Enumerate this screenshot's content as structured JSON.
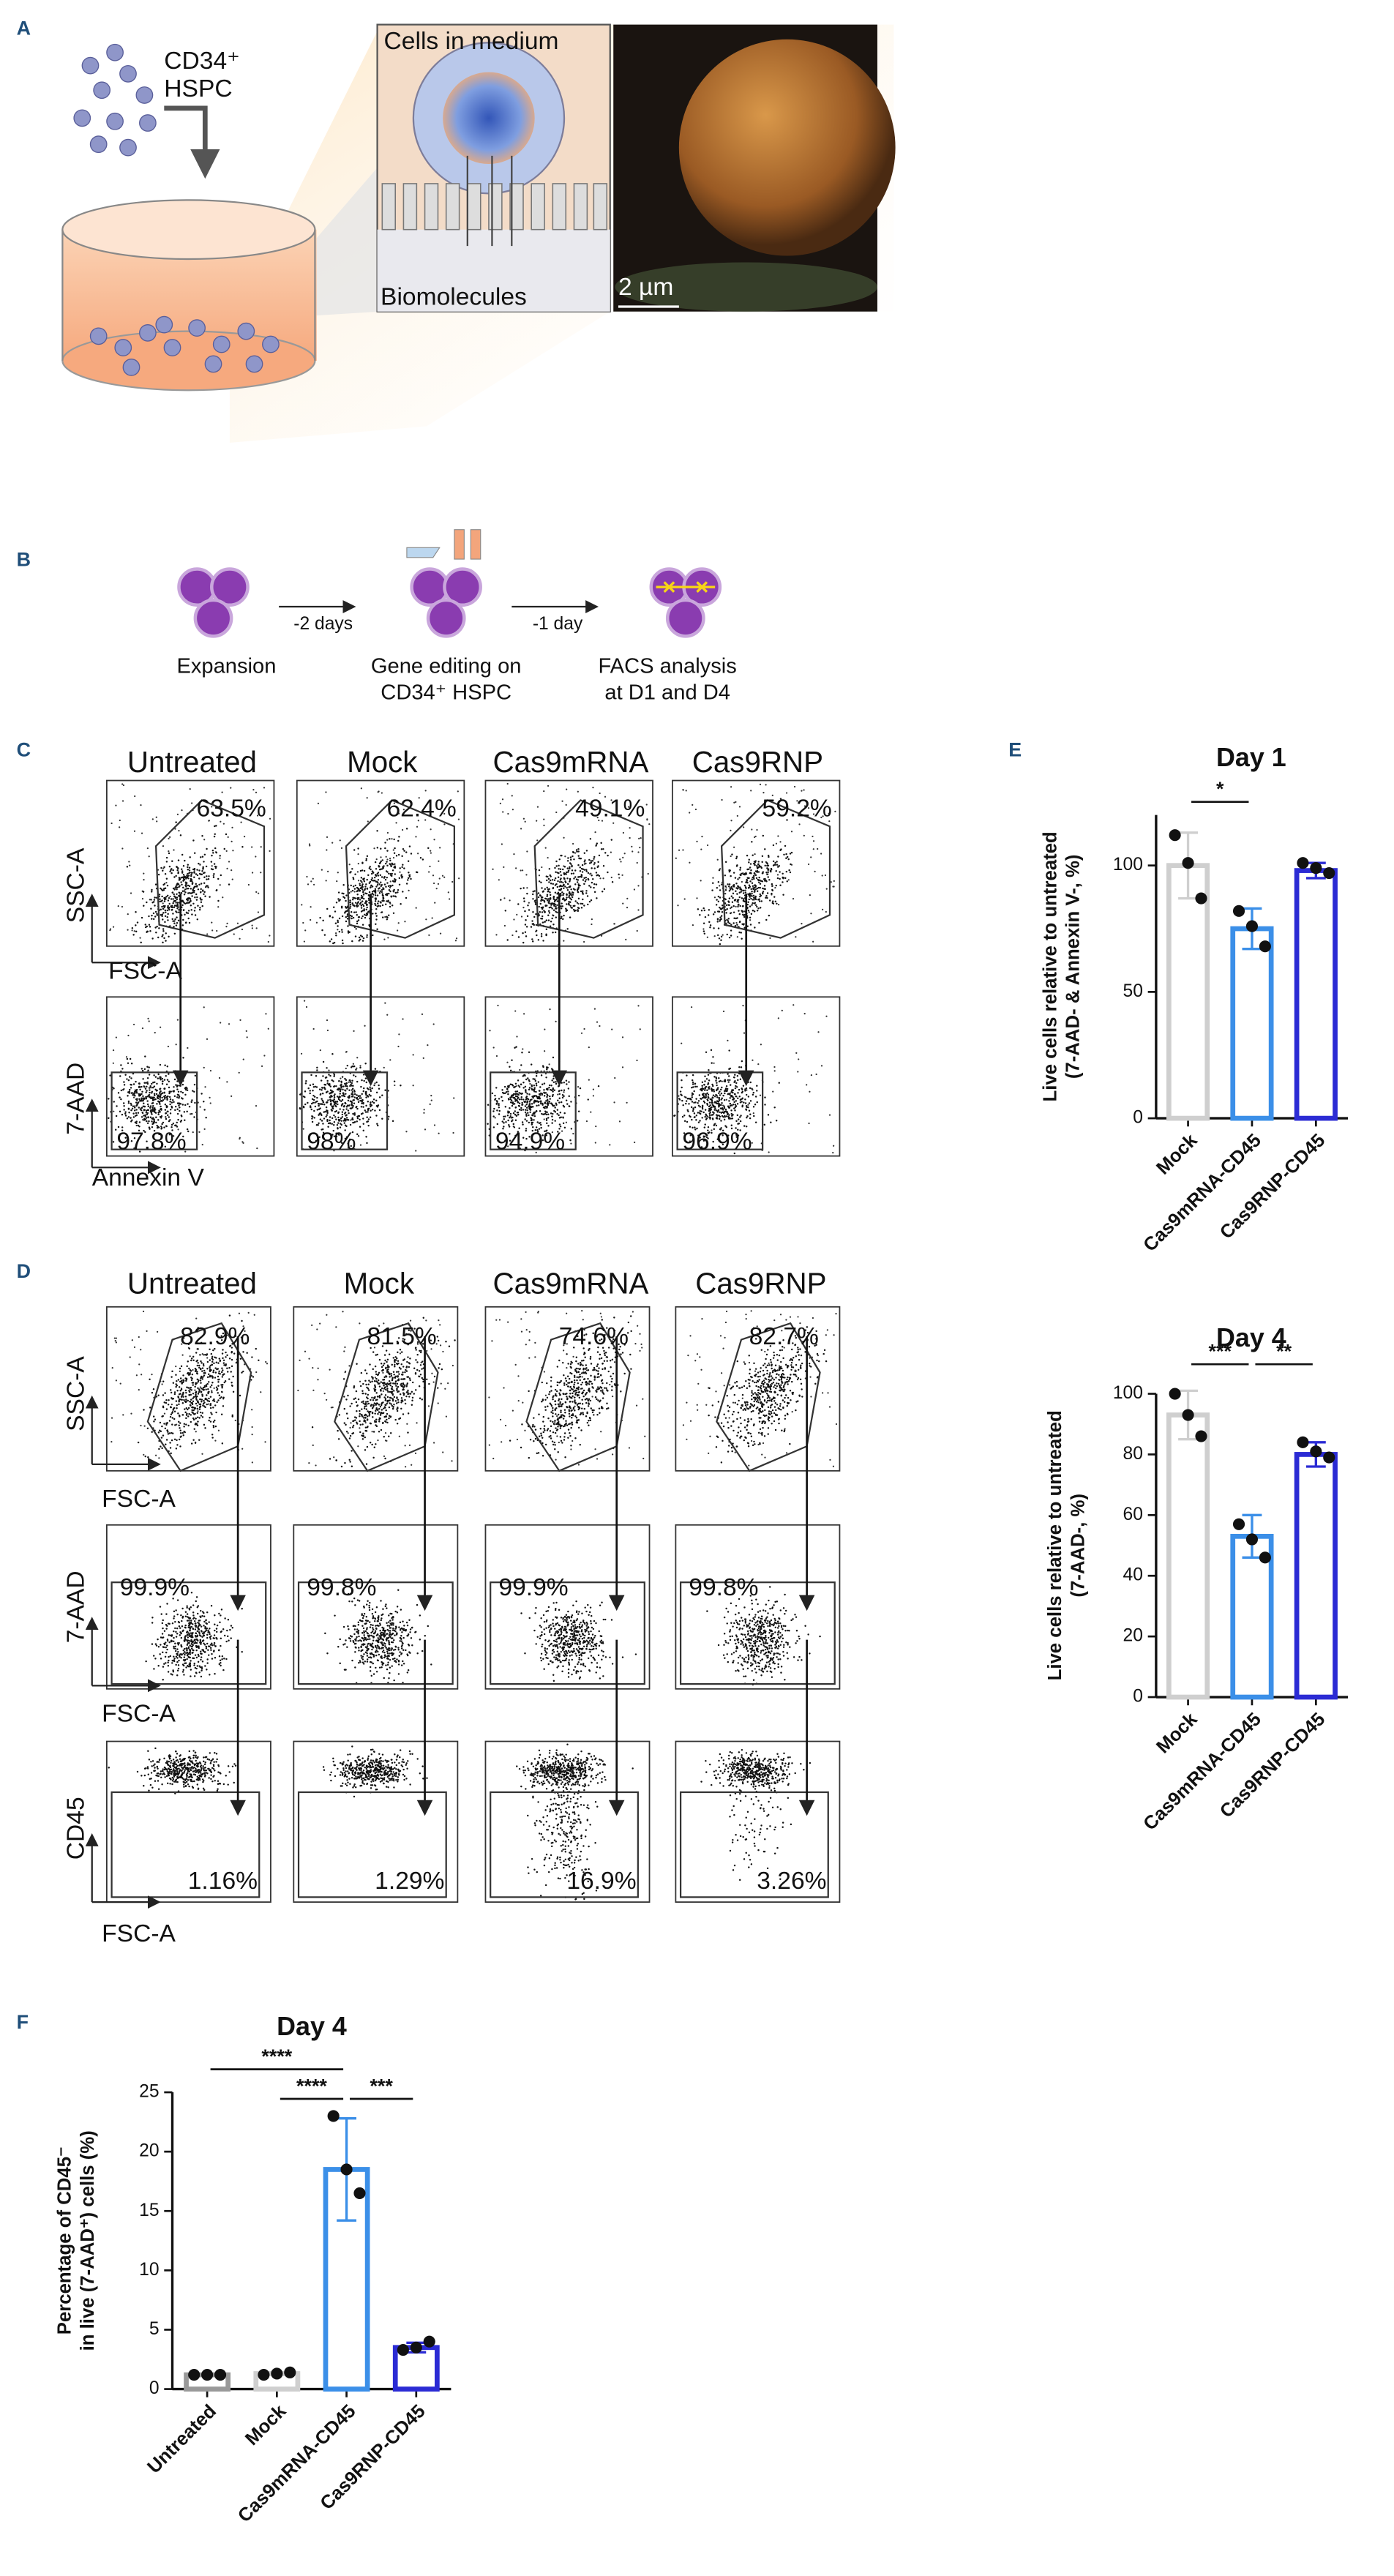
{
  "panel_letters": [
    "A",
    "B",
    "C",
    "D",
    "E",
    "F"
  ],
  "panel_a": {
    "cell_label": "CD34⁺",
    "cell_label_2": "HSPC",
    "inset_title": "Cells in medium",
    "inset_bottom": "Biomolecules",
    "scale_bar": "2 µm"
  },
  "panel_b": {
    "steps": [
      [
        "Expansion"
      ],
      [
        "Gene editing on",
        "CD34⁺ HSPC"
      ],
      [
        "FACS analysis",
        "at D1 and D4"
      ]
    ],
    "intervals": [
      "-2 days",
      "-1 day"
    ]
  },
  "panel_c": {
    "columns": [
      "Untreated",
      "Mock",
      "Cas9mRNA",
      "Cas9RNP"
    ],
    "gate_1": [
      "63.5%",
      "62.4%",
      "49.1%",
      "59.2%"
    ],
    "gate_2": [
      "97.8%",
      "98%",
      "94.9%",
      "96.9%"
    ],
    "axis_labels": [
      "SSC-A",
      "FSC-A",
      "7-AAD",
      "Annexin V"
    ]
  },
  "panel_d": {
    "columns": [
      "Untreated",
      "Mock",
      "Cas9mRNA",
      "Cas9RNP"
    ],
    "gate_1": [
      "82.9%",
      "81.5%",
      "74.6%",
      "82.7%"
    ],
    "gate_2": [
      "99.9%",
      "99.8%",
      "99.9%",
      "99.8%"
    ],
    "gate_3": [
      "1.16%",
      "1.29%",
      "16.9%",
      "3.26%"
    ],
    "axis_labels": [
      "SSC-A",
      "FSC-A",
      "7-AAD",
      "FSC-A",
      "CD45",
      "FSC-A"
    ]
  },
  "chart_data": [
    {
      "type": "bar",
      "title": "Day 1",
      "y_label": [
        "Live cells relative to untreated",
        "(7-AAD- & Annexin V-, %)"
      ],
      "categories": [
        "Mock",
        "Cas9mRNA-CD45",
        "Cas9RNP-CD45"
      ],
      "values": [
        100,
        75,
        98
      ],
      "errors": [
        13,
        8,
        3
      ],
      "points": [
        [
          112,
          101,
          87
        ],
        [
          82,
          76,
          68
        ],
        [
          101,
          99,
          97
        ]
      ],
      "colors": [
        "#cfcfcf",
        "#3b8fe8",
        "#2b2bd4"
      ],
      "ylim": [
        0,
        120
      ],
      "yticks": [
        0,
        50,
        100
      ],
      "comparisons": [
        {
          "groups": [
            "Mock",
            "Cas9mRNA-CD45"
          ],
          "label": "*"
        }
      ]
    },
    {
      "type": "bar",
      "title": "Day 4",
      "y_label": [
        "Live cells relative to untreated",
        "(7-AAD-, %)"
      ],
      "categories": [
        "Mock",
        "Cas9mRNA-CD45",
        "Cas9RNP-CD45"
      ],
      "values": [
        93,
        53,
        80
      ],
      "errors": [
        8,
        7,
        4
      ],
      "points": [
        [
          100,
          93,
          86
        ],
        [
          57,
          52,
          46
        ],
        [
          84,
          81,
          79
        ]
      ],
      "colors": [
        "#cfcfcf",
        "#3b8fe8",
        "#2b2bd4"
      ],
      "ylim": [
        0,
        100
      ],
      "yticks": [
        0,
        20,
        40,
        60,
        80,
        100
      ],
      "comparisons": [
        {
          "groups": [
            "Mock",
            "Cas9mRNA-CD45"
          ],
          "label": "***"
        },
        {
          "groups": [
            "Cas9mRNA-CD45",
            "Cas9RNP-CD45"
          ],
          "label": "**"
        }
      ]
    },
    {
      "type": "bar",
      "title": "Day 4",
      "y_label": [
        "Percentage of CD45⁻",
        "in live (7-AAD⁺) cells (%)"
      ],
      "categories": [
        "Untreated",
        "Mock",
        "Cas9mRNA-CD45",
        "Cas9RNP-CD45"
      ],
      "values": [
        1.2,
        1.3,
        18.5,
        3.5
      ],
      "errors": [
        0,
        0,
        4.3,
        0.4
      ],
      "points": [
        [
          1.2,
          1.2,
          1.2
        ],
        [
          1.2,
          1.3,
          1.4
        ],
        [
          23,
          18.5,
          16.5
        ],
        [
          3.3,
          3.5,
          4
        ]
      ],
      "colors": [
        "#999999",
        "#cfcfcf",
        "#3b8fe8",
        "#2b2bd4"
      ],
      "ylim": [
        0,
        25
      ],
      "yticks": [
        0,
        5,
        10,
        15,
        20,
        25
      ],
      "comparisons": [
        {
          "groups": [
            "Untreated",
            "Cas9mRNA-CD45"
          ],
          "label": "****"
        },
        {
          "groups": [
            "Mock",
            "Cas9mRNA-CD45"
          ],
          "label": "****"
        },
        {
          "groups": [
            "Cas9mRNA-CD45",
            "Cas9RNP-CD45"
          ],
          "label": "***"
        }
      ]
    }
  ]
}
